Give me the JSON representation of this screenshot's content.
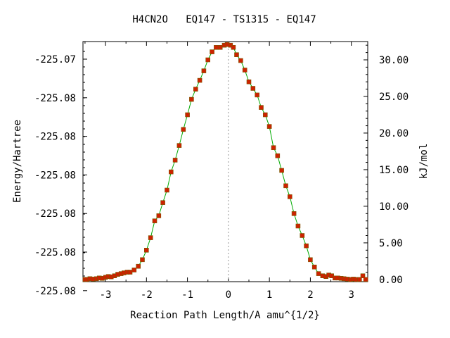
{
  "chart_data": {
    "type": "line",
    "title": "H4CN2O   EQ147 - TS1315 - EQ147",
    "xlabel": "Reaction Path Length/A amu^{1/2}",
    "ylabel": "Energy/Hartree",
    "y2label": "kJ/mol",
    "xlim": [
      -3.55,
      3.4
    ],
    "x_ticks": [
      -3,
      -2,
      -1,
      0,
      1,
      2,
      3
    ],
    "y_ticks_left": [
      "-225.07",
      "-225.08",
      "-225.08",
      "-225.08",
      "-225.08",
      "-225.08",
      "-225.08"
    ],
    "y2lim": [
      -0.3,
      32.5
    ],
    "y2_ticks": [
      0,
      5,
      10,
      15,
      20,
      25,
      30
    ],
    "y2_tick_labels": [
      "0.00",
      "5.00",
      "10.00",
      "15.00",
      "20.00",
      "25.00",
      "30.00"
    ],
    "ts_marker_x": 0,
    "grid": false,
    "line_color": "#00aa00",
    "marker_color": "#cc2200",
    "series": [
      {
        "x": [
          -3.5,
          -3.45,
          -3.38,
          -3.3,
          -3.22,
          -3.15,
          -3.08,
          -3.0,
          -2.93,
          -2.86,
          -2.78,
          -2.7,
          -2.62,
          -2.55,
          -2.47,
          -2.4,
          -2.3,
          -2.2,
          -2.1,
          -2.0,
          -1.9,
          -1.8,
          -1.7,
          -1.6,
          -1.5,
          -1.4,
          -1.3,
          -1.2,
          -1.1,
          -1.0,
          -0.9,
          -0.8,
          -0.7,
          -0.6,
          -0.5,
          -0.4,
          -0.3,
          -0.2,
          -0.1,
          -0.03,
          0.05,
          0.12,
          0.2,
          0.3,
          0.4,
          0.5,
          0.6,
          0.7,
          0.8,
          0.9,
          1.0,
          1.1,
          1.2,
          1.3,
          1.4,
          1.5,
          1.6,
          1.7,
          1.8,
          1.9,
          2.0,
          2.1,
          2.2,
          2.3,
          2.38,
          2.45,
          2.52,
          2.6,
          2.67,
          2.75,
          2.82,
          2.9,
          2.98,
          3.05,
          3.12,
          3.2,
          3.28,
          3.35
        ],
        "y": [
          0.0,
          0.0,
          0.1,
          0.05,
          0.1,
          0.2,
          0.15,
          0.3,
          0.4,
          0.35,
          0.5,
          0.7,
          0.8,
          0.9,
          1.0,
          1.0,
          1.3,
          1.8,
          2.7,
          4.0,
          5.7,
          8.0,
          8.7,
          10.5,
          12.2,
          14.7,
          16.3,
          18.3,
          20.5,
          22.5,
          24.6,
          26.0,
          27.2,
          28.5,
          30.0,
          31.1,
          31.7,
          31.7,
          32.0,
          32.1,
          32.0,
          31.7,
          30.7,
          29.9,
          28.6,
          27.0,
          26.1,
          25.2,
          23.5,
          22.5,
          20.9,
          18.0,
          16.9,
          14.9,
          12.8,
          11.3,
          9.0,
          7.3,
          6.0,
          4.6,
          2.7,
          1.7,
          0.8,
          0.5,
          0.4,
          0.6,
          0.5,
          0.2,
          0.2,
          0.15,
          0.1,
          0.05,
          0.0,
          0.05,
          0.0,
          0.0,
          0.5,
          0.0
        ]
      }
    ]
  }
}
